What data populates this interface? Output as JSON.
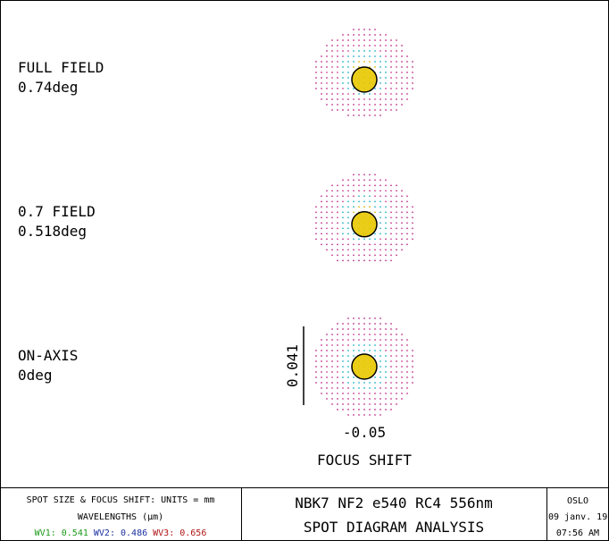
{
  "fields": [
    {
      "label": "FULL FIELD",
      "angle": "0.74deg"
    },
    {
      "label": "0.7 FIELD",
      "angle": "0.518deg"
    },
    {
      "label": "ON-AXIS",
      "angle": "0deg"
    }
  ],
  "scale": {
    "vertical": "0.041",
    "focus": "-0.05",
    "caption": "FOCUS SHIFT"
  },
  "footer": {
    "units": "SPOT SIZE & FOCUS SHIFT: UNITS = mm",
    "wavelengths_title": "WAVELENGTHS (μm)",
    "wavelengths": [
      {
        "name": "WV1:",
        "value": "0.541",
        "color": "#1a9a1a"
      },
      {
        "name": "WV2:",
        "value": "0.486",
        "color": "#1a2fa0"
      },
      {
        "name": "WV3:",
        "value": "0.656",
        "color": "#b01515"
      }
    ],
    "lens": "NBK7 NF2 e540 RC4 556nm",
    "title": "SPOT DIAGRAM ANALYSIS",
    "program": "OSLO",
    "date": "09 janv. 19",
    "time": "07:56 AM"
  }
}
